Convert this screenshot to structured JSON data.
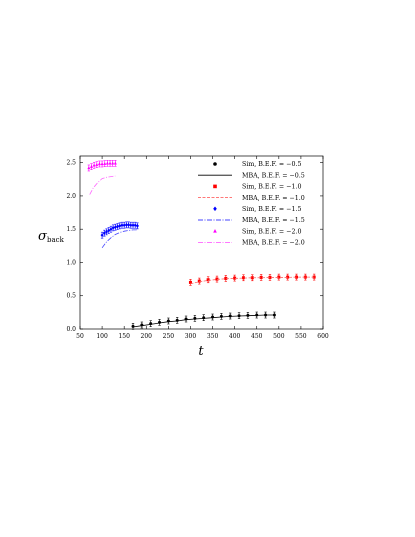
{
  "chart_data": {
    "type": "scatter",
    "xlabel": "t",
    "ylabel_main": "σ",
    "ylabel_sub": "back",
    "xlim": [
      50,
      600
    ],
    "ylim": [
      0,
      2.6
    ],
    "xticks": [
      50,
      100,
      150,
      200,
      250,
      300,
      350,
      400,
      450,
      500,
      550,
      600
    ],
    "xtick_labels": [
      "50",
      "100",
      "150",
      "200",
      "250",
      "300",
      "350",
      "400",
      "450",
      "500",
      "550",
      "600"
    ],
    "yticks": [
      0,
      0.5,
      1,
      1.5,
      2,
      2.5
    ],
    "ytick_labels": [
      "0.0",
      "0.5",
      "1.0",
      "1.5",
      "2.0",
      "2.5"
    ],
    "legend_position": "top-right",
    "series": [
      {
        "name": "Sim, B.E.F. = −0.5",
        "kind": "sim",
        "color": "#000000",
        "marker": "circle",
        "x": [
          170,
          190,
          210,
          230,
          250,
          270,
          290,
          310,
          330,
          350,
          370,
          390,
          410,
          430,
          450,
          470,
          490
        ],
        "y": [
          0.04,
          0.06,
          0.08,
          0.1,
          0.12,
          0.13,
          0.15,
          0.16,
          0.17,
          0.18,
          0.19,
          0.195,
          0.2,
          0.205,
          0.21,
          0.21,
          0.21
        ]
      },
      {
        "name": "MBA, B.E.F. = −0.5",
        "kind": "mba",
        "color": "#000000",
        "dash": "",
        "x": [
          170,
          190,
          210,
          230,
          250,
          270,
          290,
          310,
          330,
          350,
          370,
          390,
          410,
          430,
          450,
          470,
          490
        ],
        "y": [
          0.03,
          0.05,
          0.07,
          0.09,
          0.11,
          0.12,
          0.14,
          0.15,
          0.16,
          0.17,
          0.18,
          0.19,
          0.195,
          0.2,
          0.205,
          0.21,
          0.21
        ]
      },
      {
        "name": "Sim, B.E.F. = −1.0",
        "kind": "sim",
        "color": "#ff0000",
        "marker": "square",
        "x": [
          300,
          320,
          340,
          360,
          380,
          400,
          420,
          440,
          460,
          480,
          500,
          520,
          540,
          560,
          580
        ],
        "y": [
          0.7,
          0.72,
          0.74,
          0.75,
          0.76,
          0.765,
          0.77,
          0.77,
          0.775,
          0.775,
          0.78,
          0.78,
          0.78,
          0.78,
          0.78
        ]
      },
      {
        "name": "MBA, B.E.F. = −1.0",
        "kind": "mba",
        "color": "#ff6666",
        "dash": "3,1.5",
        "x": [
          300,
          320,
          340,
          360,
          380,
          400,
          420,
          440,
          460,
          480,
          500,
          520,
          540,
          560,
          580
        ],
        "y": [
          0.68,
          0.71,
          0.73,
          0.745,
          0.755,
          0.76,
          0.765,
          0.77,
          0.77,
          0.775,
          0.775,
          0.775,
          0.78,
          0.78,
          0.78
        ]
      },
      {
        "name": "Sim, B.E.F. = −1.5",
        "kind": "sim",
        "color": "#0000ff",
        "marker": "diamond",
        "x": [
          100,
          105,
          110,
          115,
          120,
          125,
          130,
          135,
          140,
          145,
          150,
          155,
          160,
          165,
          170,
          175,
          180
        ],
        "y": [
          1.41,
          1.44,
          1.46,
          1.48,
          1.5,
          1.52,
          1.53,
          1.54,
          1.55,
          1.56,
          1.56,
          1.565,
          1.565,
          1.56,
          1.56,
          1.56,
          1.55
        ]
      },
      {
        "name": "MBA, B.E.F. = −1.5",
        "kind": "mba",
        "color": "#4444ff",
        "dash": "5,1.5,1,1.5",
        "x": [
          100,
          110,
          120,
          130,
          140,
          150,
          160,
          170,
          180
        ],
        "y": [
          1.22,
          1.31,
          1.37,
          1.42,
          1.45,
          1.47,
          1.48,
          1.49,
          1.49
        ]
      },
      {
        "name": "Sim, B.E.F. = −2.0",
        "kind": "sim",
        "color": "#ff00ff",
        "marker": "triangle",
        "x": [
          70,
          76,
          82,
          88,
          94,
          100,
          106,
          112,
          118,
          124,
          130
        ],
        "y": [
          2.42,
          2.44,
          2.46,
          2.47,
          2.48,
          2.48,
          2.485,
          2.49,
          2.49,
          2.49,
          2.49
        ]
      },
      {
        "name": "MBA, B.E.F. = −2.0",
        "kind": "mba",
        "color": "#ff66ff",
        "dash": "5,1.5,1,1.5",
        "x": [
          72,
          80,
          90,
          100,
          110,
          120,
          130
        ],
        "y": [
          2.02,
          2.12,
          2.2,
          2.26,
          2.28,
          2.29,
          2.3
        ]
      }
    ]
  }
}
